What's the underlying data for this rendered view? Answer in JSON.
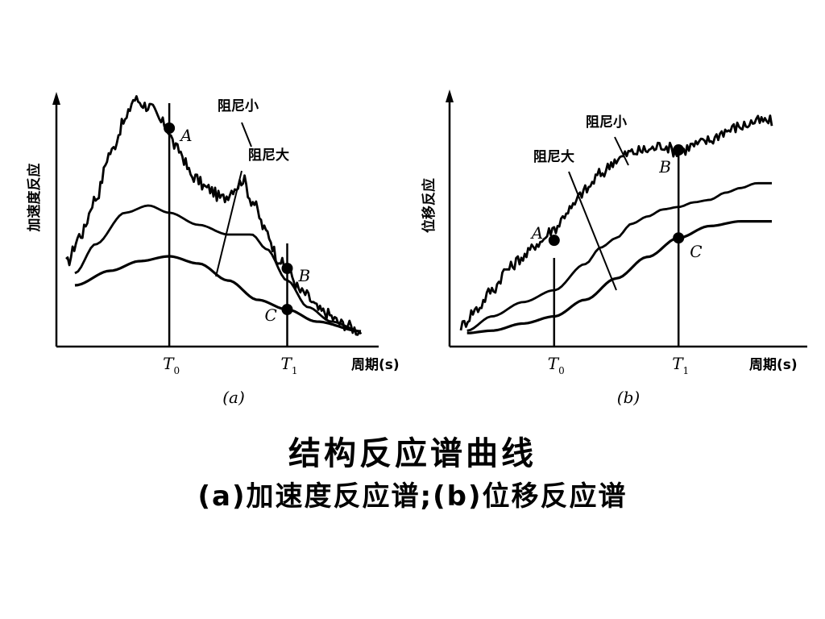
{
  "figure": {
    "title": "结构反应谱曲线",
    "subtitle": "(a)加速度反应谱;(b)位移反应谱"
  },
  "chart_data": [
    {
      "id": "a",
      "type": "line",
      "caption": "(a)",
      "ylabel": "加速度反应",
      "xlabel": "周期(s)",
      "x_ticks": [
        {
          "label": "T",
          "sub": "0",
          "x": 0.35
        },
        {
          "label": "T",
          "sub": "1",
          "x": 0.75
        }
      ],
      "xlim": [
        0,
        1
      ],
      "ylim": [
        0,
        1
      ],
      "series": [
        {
          "name": "阻尼小",
          "noisy": true,
          "points": [
            [
              0.0,
              0.31
            ],
            [
              0.05,
              0.43
            ],
            [
              0.1,
              0.58
            ],
            [
              0.15,
              0.77
            ],
            [
              0.2,
              0.9
            ],
            [
              0.23,
              0.99
            ],
            [
              0.28,
              0.96
            ],
            [
              0.33,
              0.89
            ],
            [
              0.38,
              0.78
            ],
            [
              0.43,
              0.67
            ],
            [
              0.48,
              0.62
            ],
            [
              0.53,
              0.58
            ],
            [
              0.58,
              0.63
            ],
            [
              0.6,
              0.66
            ],
            [
              0.63,
              0.57
            ],
            [
              0.68,
              0.44
            ],
            [
              0.72,
              0.33
            ],
            [
              0.75,
              0.28
            ],
            [
              0.8,
              0.19
            ],
            [
              0.87,
              0.11
            ],
            [
              0.94,
              0.06
            ],
            [
              1.0,
              0.03
            ]
          ]
        },
        {
          "name": "",
          "noisy": false,
          "points": [
            [
              0.03,
              0.27
            ],
            [
              0.1,
              0.39
            ],
            [
              0.2,
              0.52
            ],
            [
              0.28,
              0.55
            ],
            [
              0.35,
              0.52
            ],
            [
              0.45,
              0.47
            ],
            [
              0.55,
              0.43
            ],
            [
              0.63,
              0.43
            ],
            [
              0.68,
              0.37
            ],
            [
              0.75,
              0.24
            ],
            [
              0.82,
              0.13
            ],
            [
              0.9,
              0.07
            ],
            [
              1.0,
              0.03
            ]
          ]
        },
        {
          "name": "阻尼大",
          "noisy": false,
          "points": [
            [
              0.03,
              0.22
            ],
            [
              0.15,
              0.28
            ],
            [
              0.25,
              0.32
            ],
            [
              0.35,
              0.34
            ],
            [
              0.45,
              0.31
            ],
            [
              0.55,
              0.24
            ],
            [
              0.65,
              0.16
            ],
            [
              0.75,
              0.12
            ],
            [
              0.85,
              0.07
            ],
            [
              1.0,
              0.03
            ]
          ]
        }
      ],
      "points_labeled": [
        {
          "label": "A",
          "x": 0.35,
          "y": 0.87
        },
        {
          "label": "B",
          "x": 0.75,
          "y": 0.29
        },
        {
          "label": "C",
          "x": 0.75,
          "y": 0.12
        }
      ],
      "annotations": [
        {
          "text": "阻尼小",
          "target_series": 0
        },
        {
          "text": "阻尼大",
          "target_series": 2
        }
      ]
    },
    {
      "id": "b",
      "type": "line",
      "caption": "(b)",
      "ylabel": "位移反应",
      "xlabel": "周期(s)",
      "x_ticks": [
        {
          "label": "T",
          "sub": "0",
          "x": 0.3
        },
        {
          "label": "T",
          "sub": "1",
          "x": 0.7
        }
      ],
      "xlim": [
        0,
        1
      ],
      "ylim": [
        0,
        1
      ],
      "series": [
        {
          "name": "阻尼小",
          "noisy": true,
          "points": [
            [
              0.0,
              0.07
            ],
            [
              0.05,
              0.14
            ],
            [
              0.1,
              0.22
            ],
            [
              0.15,
              0.31
            ],
            [
              0.2,
              0.36
            ],
            [
              0.25,
              0.42
            ],
            [
              0.3,
              0.48
            ],
            [
              0.35,
              0.56
            ],
            [
              0.4,
              0.64
            ],
            [
              0.45,
              0.71
            ],
            [
              0.5,
              0.77
            ],
            [
              0.55,
              0.8
            ],
            [
              0.6,
              0.81
            ],
            [
              0.65,
              0.83
            ],
            [
              0.7,
              0.8
            ],
            [
              0.75,
              0.83
            ],
            [
              0.8,
              0.85
            ],
            [
              0.85,
              0.89
            ],
            [
              0.9,
              0.91
            ],
            [
              0.95,
              0.93
            ],
            [
              1.0,
              0.93
            ]
          ]
        },
        {
          "name": "",
          "noisy": false,
          "points": [
            [
              0.02,
              0.05
            ],
            [
              0.1,
              0.11
            ],
            [
              0.2,
              0.17
            ],
            [
              0.3,
              0.22
            ],
            [
              0.4,
              0.33
            ],
            [
              0.45,
              0.4
            ],
            [
              0.5,
              0.44
            ],
            [
              0.55,
              0.5
            ],
            [
              0.6,
              0.53
            ],
            [
              0.65,
              0.56
            ],
            [
              0.7,
              0.57
            ],
            [
              0.75,
              0.59
            ],
            [
              0.8,
              0.6
            ],
            [
              0.85,
              0.63
            ],
            [
              0.9,
              0.65
            ],
            [
              0.95,
              0.67
            ],
            [
              1.0,
              0.67
            ]
          ]
        },
        {
          "name": "阻尼大",
          "noisy": false,
          "points": [
            [
              0.02,
              0.04
            ],
            [
              0.1,
              0.05
            ],
            [
              0.2,
              0.08
            ],
            [
              0.3,
              0.11
            ],
            [
              0.4,
              0.18
            ],
            [
              0.5,
              0.27
            ],
            [
              0.6,
              0.36
            ],
            [
              0.7,
              0.44
            ],
            [
              0.8,
              0.49
            ],
            [
              0.9,
              0.51
            ],
            [
              1.0,
              0.51
            ]
          ]
        }
      ],
      "points_labeled": [
        {
          "label": "A",
          "x": 0.3,
          "y": 0.43
        },
        {
          "label": "B",
          "x": 0.7,
          "y": 0.81
        },
        {
          "label": "C",
          "x": 0.7,
          "y": 0.44
        }
      ],
      "annotations": [
        {
          "text": "阻尼小",
          "target_series": 0
        },
        {
          "text": "阻尼大",
          "target_series": 2
        }
      ]
    }
  ]
}
